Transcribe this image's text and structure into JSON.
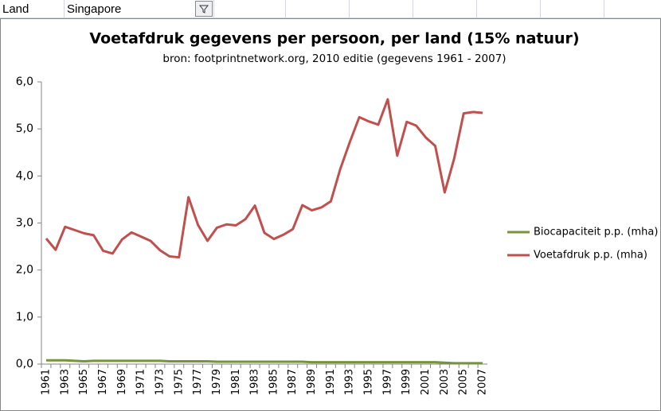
{
  "spreadsheet": {
    "cells": [
      "Land",
      "Singapore"
    ]
  },
  "chart_data": {
    "type": "line",
    "title": "Voetafdruk gegevens per persoon,  per land (15% natuur)",
    "subtitle": "bron: footprintnetwork.org, 2010 editie (gegevens 1961 - 2007)",
    "categories": [
      "1961",
      null,
      "1963",
      null,
      "1965",
      null,
      "1967",
      null,
      "1969",
      null,
      "1971",
      null,
      "1973",
      null,
      "1975",
      null,
      "1977",
      null,
      "1979",
      null,
      "1981",
      null,
      "1983",
      null,
      "1985",
      null,
      "1987",
      null,
      "1989",
      null,
      "1991",
      null,
      "1993",
      null,
      "1995",
      null,
      "1997",
      null,
      "1999",
      null,
      "2001",
      null,
      "2003",
      null,
      "2005",
      null,
      "2007"
    ],
    "series": [
      {
        "name": "Biocapaciteit  p.p. (mha)",
        "color": "#77933c",
        "values": [
          0.08,
          0.08,
          0.08,
          0.07,
          0.06,
          0.07,
          0.07,
          0.07,
          0.07,
          0.07,
          0.07,
          0.07,
          0.07,
          0.06,
          0.06,
          0.06,
          0.06,
          0.06,
          0.05,
          0.05,
          0.05,
          0.05,
          0.05,
          0.05,
          0.05,
          0.05,
          0.05,
          0.05,
          0.04,
          0.04,
          0.04,
          0.04,
          0.04,
          0.04,
          0.04,
          0.04,
          0.04,
          0.04,
          0.04,
          0.04,
          0.04,
          0.04,
          0.03,
          0.02,
          0.02,
          0.02,
          0.02
        ]
      },
      {
        "name": "Voetafdruk p.p. (mha)",
        "color": "#c0504d",
        "values": [
          2.67,
          2.43,
          2.92,
          2.85,
          2.78,
          2.74,
          2.41,
          2.35,
          2.65,
          2.8,
          2.71,
          2.62,
          2.42,
          2.29,
          2.27,
          3.55,
          2.96,
          2.62,
          2.9,
          2.97,
          2.95,
          3.08,
          3.37,
          2.79,
          2.66,
          2.75,
          2.87,
          3.38,
          3.27,
          3.33,
          3.46,
          4.15,
          4.72,
          5.25,
          5.16,
          5.09,
          5.63,
          4.43,
          5.15,
          5.07,
          4.82,
          4.64,
          3.65,
          4.37,
          5.33,
          5.36,
          5.34
        ]
      }
    ],
    "ylim": [
      0,
      6
    ],
    "yticks": [
      {
        "value": 0,
        "label": "0,0"
      },
      {
        "value": 1,
        "label": "1,0"
      },
      {
        "value": 2,
        "label": "2,0"
      },
      {
        "value": 3,
        "label": "3,0"
      },
      {
        "value": 4,
        "label": "4,0"
      },
      {
        "value": 5,
        "label": "5,0"
      },
      {
        "value": 6,
        "label": "6,0"
      }
    ],
    "grid": false,
    "legend": "right"
  }
}
